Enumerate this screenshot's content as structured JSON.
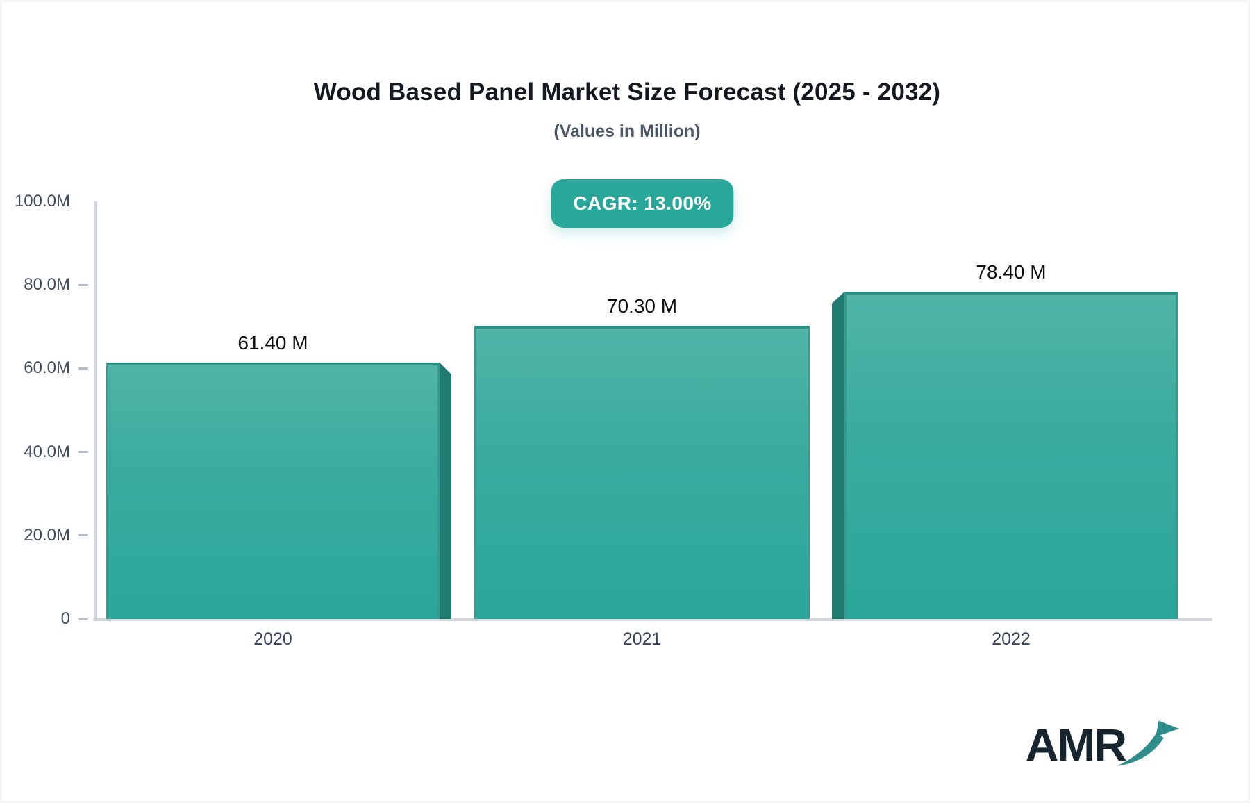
{
  "header": {
    "title": "Wood Based Panel Market Size Forecast (2025 - 2032)",
    "subtitle": "(Values in Million)"
  },
  "badge": {
    "label": "CAGR: 13.00%",
    "background": "#2aa79b",
    "text_color": "#ffffff"
  },
  "chart_data": {
    "type": "bar",
    "title": "Wood Based Panel Market Size Forecast (2025 - 2032)",
    "subtitle": "(Values in Million)",
    "unit": "Million",
    "categories": [
      "2020",
      "2021",
      "2022"
    ],
    "values": [
      61.4,
      70.3,
      78.4
    ],
    "value_labels": [
      "61.40 M",
      "70.30 M",
      "78.40 M"
    ],
    "ylim": [
      0,
      100
    ],
    "yticks": [
      0,
      20,
      40,
      60,
      80,
      100
    ],
    "ytick_labels": [
      "0",
      "20.0M",
      "40.0M",
      "60.0M",
      "80.0M",
      "100.0M"
    ],
    "grid": false,
    "legend": "none",
    "cagr": "13.00%",
    "bar_face_top_color": "#50b4a7",
    "bar_face_bottom_color": "#2aa79a",
    "bar_side_color": "#1f7b71",
    "bar_stroke_color": "#2b8d84",
    "axis_line_color": "#d3d7df"
  },
  "logo": {
    "text": "AMR",
    "text_color": "#16242e",
    "arrow_color": "#2e8d8b",
    "arrow_icon": "growth-arrow-icon"
  }
}
